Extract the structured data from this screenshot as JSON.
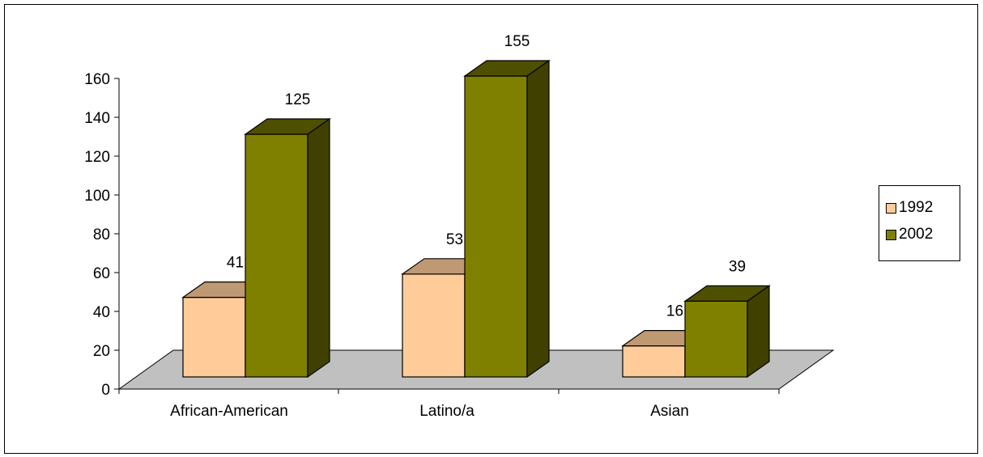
{
  "chart_data": {
    "type": "bar",
    "categories": [
      "African-American",
      "Latino/a",
      "Asian"
    ],
    "series": [
      {
        "name": "1992",
        "values": [
          41,
          53,
          16
        ],
        "color": "#FFCC99"
      },
      {
        "name": "2002",
        "values": [
          125,
          155,
          39
        ],
        "color": "#808000"
      }
    ],
    "ylim": [
      0,
      160
    ],
    "yticks": [
      0,
      20,
      40,
      60,
      80,
      100,
      120,
      140,
      160
    ],
    "legend_position": "right",
    "three_d": true,
    "floor_color": "#C0C0C0"
  },
  "legend": {
    "items": [
      {
        "label": "1992",
        "color": "#FFCC99"
      },
      {
        "label": "2002",
        "color": "#808000"
      }
    ]
  }
}
